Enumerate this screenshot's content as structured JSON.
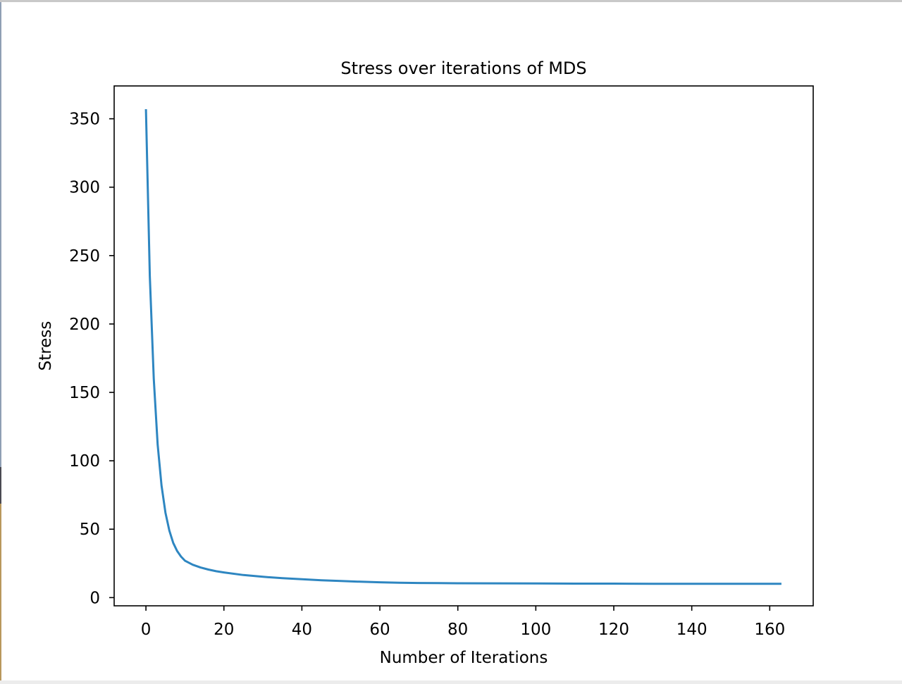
{
  "colors": {
    "line": "#2e86c1",
    "axis": "#000000",
    "background": "#ffffff"
  },
  "chart_data": {
    "type": "line",
    "title": "Stress over iterations of MDS",
    "xlabel": "Number of Iterations",
    "ylabel": "Stress",
    "xlim": [
      -8.15,
      171.15
    ],
    "ylim": [
      -6,
      374
    ],
    "xticks": [
      0,
      20,
      40,
      60,
      80,
      100,
      120,
      140,
      160
    ],
    "yticks": [
      0,
      50,
      100,
      150,
      200,
      250,
      300,
      350
    ],
    "grid": false,
    "legend": "none",
    "series": [
      {
        "x": [
          0,
          1,
          2,
          3,
          4,
          5,
          6,
          7,
          8,
          9,
          10,
          12,
          14,
          16,
          18,
          20,
          25,
          30,
          35,
          40,
          45,
          50,
          55,
          60,
          65,
          70,
          75,
          80,
          90,
          100,
          110,
          120,
          130,
          140,
          150,
          160,
          163
        ],
        "y": [
          357,
          235,
          160,
          112,
          82,
          62,
          49,
          40,
          34,
          30,
          27,
          24,
          22,
          20.5,
          19.3,
          18.4,
          16.5,
          15.2,
          14.2,
          13.4,
          12.7,
          12.1,
          11.6,
          11.2,
          10.9,
          10.7,
          10.6,
          10.5,
          10.4,
          10.3,
          10.2,
          10.2,
          10.1,
          10.1,
          10.1,
          10.1,
          10.1
        ]
      }
    ]
  }
}
